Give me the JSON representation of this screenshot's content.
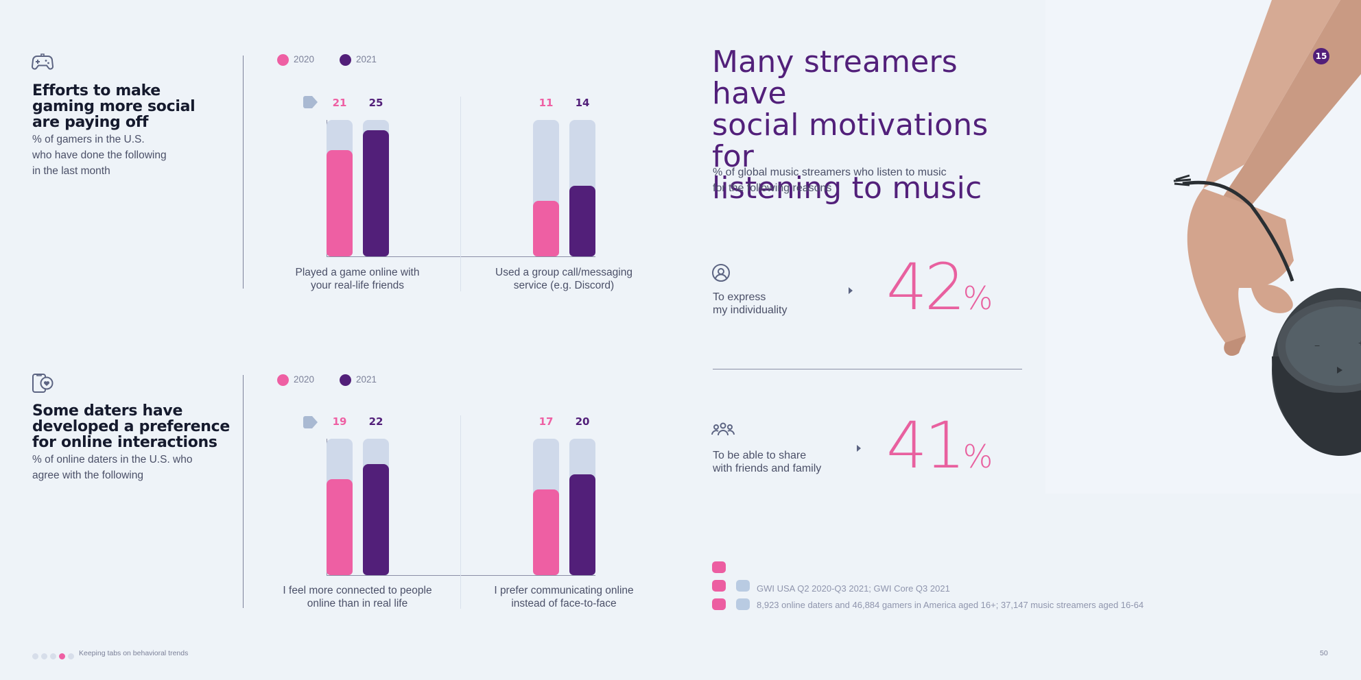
{
  "page_badge": "15",
  "page_number": "50",
  "footer": {
    "label": "Keeping tabs on behavioral trends",
    "active_dot": 3,
    "dot_count": 5
  },
  "colors": {
    "2020": "#ee5fa3",
    "2021": "#521f79",
    "track": "#cfd9ea",
    "accent_text": "#52207a",
    "pct": "#e8609f"
  },
  "legend": {
    "series_2020": "2020",
    "series_2021": "2021"
  },
  "section_gaming": {
    "icon": "gamepad-icon",
    "title_lines": [
      "Efforts to make",
      "gaming more social",
      "are paying off"
    ],
    "subtitle_lines": [
      "% of gamers in the U.S.",
      "who have done the following",
      "in the last month"
    ]
  },
  "section_dating": {
    "icon": "phone-heart-icon",
    "title_lines": [
      "Some daters have",
      "developed a preference",
      "for online interactions"
    ],
    "subtitle_lines": [
      "% of online daters in the U.S. who",
      "agree with the following"
    ]
  },
  "right_panel": {
    "title_lines": [
      "Many streamers have",
      "social motivations for",
      "listening to music"
    ],
    "subtitle_lines": [
      "% of global music streamers who listen to music",
      "for the following reasons"
    ],
    "reasons": [
      {
        "icon": "person-circle-icon",
        "label_lines": [
          "To express",
          "my individuality"
        ],
        "value": "42",
        "unit": "%"
      },
      {
        "icon": "group-icon",
        "label_lines": [
          "To be able to share",
          "with friends and family"
        ],
        "value": "41",
        "unit": "%"
      }
    ]
  },
  "sources": {
    "line1": "GWI USA Q2 2020-Q3 2021; GWI Core Q3 2021",
    "line2": "8,923 online daters and 46,884 gamers in America aged 16+; 37,147 music streamers aged 16-64"
  },
  "chart_data": [
    {
      "type": "bar",
      "categories": [
        "Played a game online with your real-life friends",
        "Used a group call/messaging service (e.g. Discord)"
      ],
      "category_lines": [
        [
          "Played a game online with",
          "your real-life friends"
        ],
        [
          "Used a group call/messaging",
          "service (e.g. Discord)"
        ]
      ],
      "series": [
        {
          "name": "2020",
          "values": [
            21,
            11
          ]
        },
        {
          "name": "2021",
          "values": [
            25,
            14
          ]
        }
      ],
      "ylim": [
        0,
        27
      ],
      "legend": "top-left",
      "grid": false
    },
    {
      "type": "bar",
      "categories": [
        "I feel more connected to people online than in real life",
        "I prefer communicating online instead of face-to-face"
      ],
      "category_lines": [
        [
          "I feel more connected to people",
          "online than in real life"
        ],
        [
          "I prefer communicating online",
          "instead of face-to-face"
        ]
      ],
      "series": [
        {
          "name": "2020",
          "values": [
            19,
            17
          ]
        },
        {
          "name": "2021",
          "values": [
            22,
            20
          ]
        }
      ],
      "ylim": [
        0,
        27
      ],
      "legend": "top-left",
      "grid": false
    }
  ]
}
